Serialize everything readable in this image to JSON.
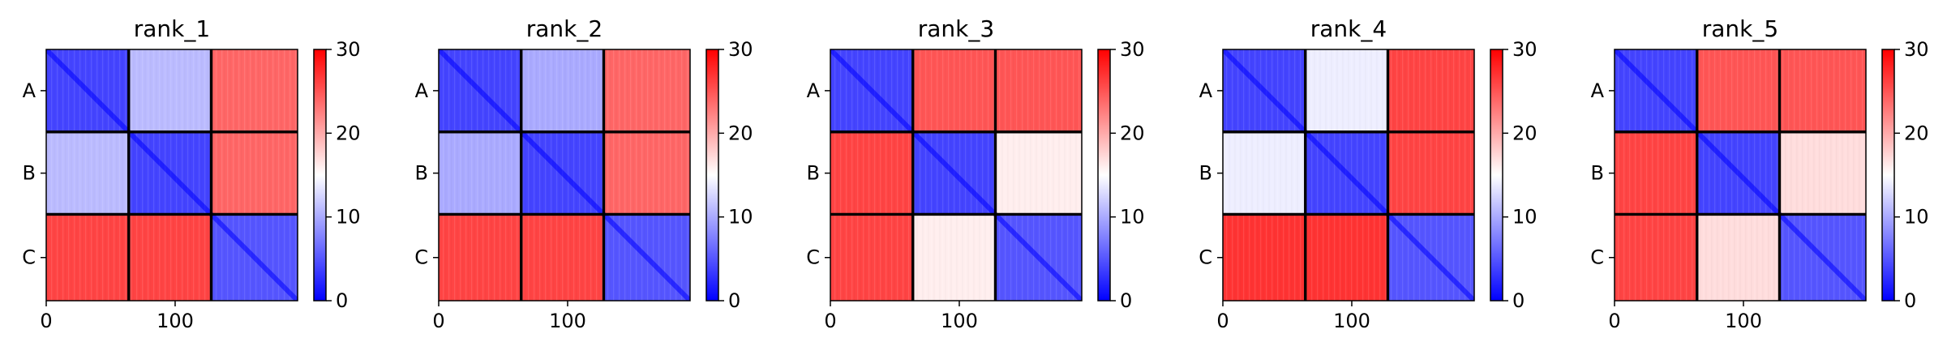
{
  "chart_data": [
    {
      "type": "heatmap",
      "title": "rank_1",
      "row_labels": [
        "A",
        "B",
        "C"
      ],
      "x_ticks": [
        0,
        100
      ],
      "xlim": [
        0,
        195
      ],
      "colorbar": {
        "ticks": [
          0,
          10,
          20,
          30
        ],
        "range": [
          0,
          30
        ],
        "colormap": "bwr"
      },
      "block_sizes": [
        64,
        64,
        67
      ],
      "block_mean_values": [
        [
          4,
          11,
          24
        ],
        [
          11,
          4,
          24
        ],
        [
          26,
          26,
          5
        ]
      ]
    },
    {
      "type": "heatmap",
      "title": "rank_2",
      "row_labels": [
        "A",
        "B",
        "C"
      ],
      "x_ticks": [
        0,
        100
      ],
      "xlim": [
        0,
        195
      ],
      "colorbar": {
        "ticks": [
          0,
          10,
          20,
          30
        ],
        "range": [
          0,
          30
        ],
        "colormap": "bwr"
      },
      "block_sizes": [
        64,
        64,
        67
      ],
      "block_mean_values": [
        [
          4,
          10,
          24
        ],
        [
          10,
          4,
          24
        ],
        [
          26,
          26,
          5
        ]
      ]
    },
    {
      "type": "heatmap",
      "title": "rank_3",
      "row_labels": [
        "A",
        "B",
        "C"
      ],
      "x_ticks": [
        0,
        100
      ],
      "xlim": [
        0,
        195
      ],
      "colorbar": {
        "ticks": [
          0,
          10,
          20,
          30
        ],
        "range": [
          0,
          30
        ],
        "colormap": "bwr"
      },
      "block_sizes": [
        64,
        64,
        67
      ],
      "block_mean_values": [
        [
          4,
          25,
          25
        ],
        [
          26,
          4,
          16
        ],
        [
          26,
          16,
          5
        ]
      ]
    },
    {
      "type": "heatmap",
      "title": "rank_4",
      "row_labels": [
        "A",
        "B",
        "C"
      ],
      "x_ticks": [
        0,
        100
      ],
      "xlim": [
        0,
        195
      ],
      "colorbar": {
        "ticks": [
          0,
          10,
          20,
          30
        ],
        "range": [
          0,
          30
        ],
        "colormap": "bwr"
      },
      "block_sizes": [
        64,
        64,
        67
      ],
      "block_mean_values": [
        [
          4,
          14,
          26
        ],
        [
          14,
          4,
          26
        ],
        [
          27,
          27,
          5
        ]
      ]
    },
    {
      "type": "heatmap",
      "title": "rank_5",
      "row_labels": [
        "A",
        "B",
        "C"
      ],
      "x_ticks": [
        0,
        100
      ],
      "xlim": [
        0,
        195
      ],
      "colorbar": {
        "ticks": [
          0,
          10,
          20,
          30
        ],
        "range": [
          0,
          30
        ],
        "colormap": "bwr"
      },
      "block_sizes": [
        64,
        64,
        67
      ],
      "block_mean_values": [
        [
          4,
          25,
          25
        ],
        [
          26,
          4,
          17
        ],
        [
          26,
          17,
          5
        ]
      ]
    }
  ]
}
